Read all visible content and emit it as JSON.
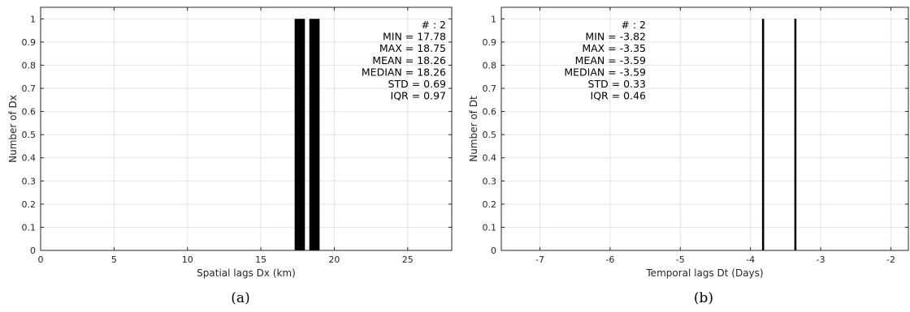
{
  "chart_data": [
    {
      "type": "bar",
      "panel": "a",
      "caption": "(a)",
      "xlabel": "Spatial lags Dx (km)",
      "ylabel": "Number of Dx",
      "xlim": [
        0,
        28
      ],
      "ylim": [
        0,
        1.05
      ],
      "xticks": [
        0,
        5,
        10,
        15,
        20,
        25
      ],
      "yticks": [
        0,
        0.1,
        0.2,
        0.3,
        0.4,
        0.5,
        0.6,
        0.7,
        0.8,
        0.9,
        1
      ],
      "grid": true,
      "bar_color": "#000000",
      "bars": [
        {
          "x0": 17.3,
          "x1": 18.0,
          "value": 1
        },
        {
          "x0": 18.3,
          "x1": 19.0,
          "value": 1
        }
      ],
      "stats_align": "right",
      "stats": [
        "# : 2",
        "MIN = 17.78",
        "MAX =  18.75",
        "MEAN = 18.26",
        "MEDIAN = 18.26",
        "STD = 0.69",
        "IQR = 0.97"
      ]
    },
    {
      "type": "bar",
      "panel": "b",
      "caption": "(b)",
      "xlabel": "Temporal lags Dt (Days)",
      "ylabel": "Number of Dt",
      "xlim": [
        -7.55,
        -1.75
      ],
      "ylim": [
        0,
        1.05
      ],
      "xticks": [
        -7,
        -6,
        -5,
        -4,
        -3,
        -2
      ],
      "yticks": [
        0,
        0.1,
        0.2,
        0.3,
        0.4,
        0.5,
        0.6,
        0.7,
        0.8,
        0.9,
        1
      ],
      "grid": true,
      "bar_color": "#000000",
      "bars": [
        {
          "x0": -3.835,
          "x1": -3.805,
          "value": 1
        },
        {
          "x0": -3.375,
          "x1": -3.345,
          "value": 1
        }
      ],
      "stats_align": "right",
      "stats": [
        "# : 2",
        "MIN = -3.82",
        "MAX =  -3.35",
        "MEAN = -3.59",
        "MEDIAN = -3.59",
        "STD = 0.33",
        "IQR = 0.46"
      ]
    }
  ]
}
